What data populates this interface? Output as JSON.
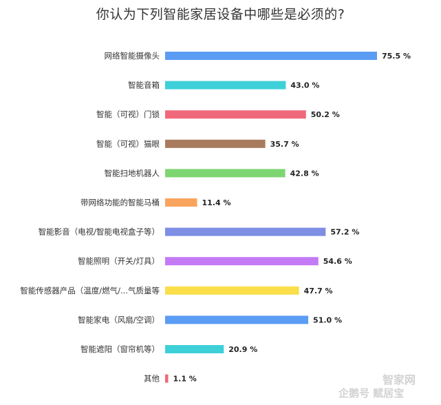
{
  "chart_data": {
    "type": "bar",
    "orientation": "horizontal",
    "title": "你认为下列智能家居设备中哪些是必须的?",
    "categories": [
      "网络智能摄像头",
      "智能音箱",
      "智能（可视）门锁",
      "智能（可视）猫眼",
      "智能扫地机器人",
      "带网络功能的智能马桶",
      "智能影音（电视/智能电视盒子等）",
      "智能照明（开关/灯具）",
      "智能传感器产品（温度/燃气/...气质量等",
      "智能家电（风扇/空调）",
      "智能遮阳（窗帘机等）",
      "其他"
    ],
    "values": [
      75.5,
      43.0,
      50.2,
      35.7,
      42.8,
      11.4,
      57.2,
      54.6,
      47.7,
      51.0,
      20.9,
      1.1
    ],
    "value_labels": [
      "75.5 %",
      "43.0 %",
      "50.2 %",
      "35.7 %",
      "42.8 %",
      "11.4 %",
      "57.2 %",
      "54.6 %",
      "47.7 %",
      "51.0 %",
      "20.9 %",
      "1.1 %"
    ],
    "colors": [
      "#5b9cf4",
      "#3ed0d8",
      "#f0697a",
      "#a97b5e",
      "#7ed672",
      "#f9a45e",
      "#7e8ee4",
      "#c57af5",
      "#fadf4a",
      "#5b9cf4",
      "#3ed0d8",
      "#f0697a"
    ],
    "xlim": [
      0,
      100
    ],
    "grid": false,
    "legend": "none"
  },
  "watermark": {
    "line1": "智家网",
    "line2": "企鹅号 赋居宝"
  }
}
